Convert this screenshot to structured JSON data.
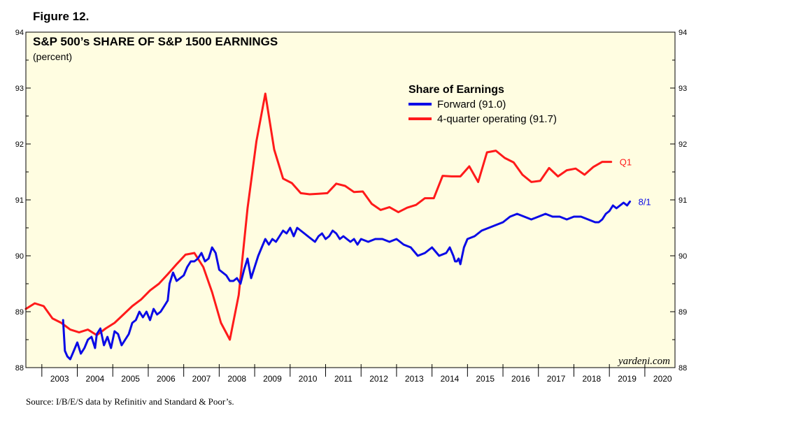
{
  "figure_label": "Figure 12.",
  "source": "Source: I/B/E/S data by Refinitiv and Standard & Poor’s.",
  "chart_data": {
    "type": "line",
    "title": "S&P 500’s SHARE OF S&P 1500 EARNINGS",
    "subtitle": "(percent)",
    "watermark": "yardeni.com",
    "ylim": [
      88,
      94
    ],
    "xlim": [
      2002.55,
      2020.85
    ],
    "yticks": [
      88,
      89,
      90,
      91,
      92,
      93,
      94
    ],
    "xtick_labels": [
      "2003",
      "2004",
      "2005",
      "2006",
      "2007",
      "2008",
      "2009",
      "2010",
      "2011",
      "2012",
      "2013",
      "2014",
      "2015",
      "2016",
      "2017",
      "2018",
      "2019",
      "2020"
    ],
    "background_color": "#fffde1",
    "legend": {
      "title": "Share of Earnings",
      "position": "top-right",
      "entries": [
        "Forward (91.0)",
        "4-quarter operating (91.7)"
      ]
    },
    "series": [
      {
        "key": "forward",
        "color": "#0a0ae6",
        "end_label": "8/1",
        "x": [
          2003.6,
          2003.65,
          2003.72,
          2003.8,
          2003.9,
          2004.0,
          2004.1,
          2004.2,
          2004.3,
          2004.4,
          2004.5,
          2004.55,
          2004.65,
          2004.75,
          2004.85,
          2004.95,
          2005.05,
          2005.15,
          2005.25,
          2005.35,
          2005.45,
          2005.55,
          2005.65,
          2005.75,
          2005.85,
          2005.95,
          2006.05,
          2006.15,
          2006.25,
          2006.35,
          2006.45,
          2006.55,
          2006.6,
          2006.7,
          2006.8,
          2006.9,
          2007.0,
          2007.1,
          2007.2,
          2007.3,
          2007.4,
          2007.5,
          2007.6,
          2007.7,
          2007.8,
          2007.9,
          2008.0,
          2008.1,
          2008.2,
          2008.3,
          2008.4,
          2008.5,
          2008.6,
          2008.7,
          2008.8,
          2008.9,
          2009.0,
          2009.1,
          2009.2,
          2009.3,
          2009.4,
          2009.5,
          2009.6,
          2009.7,
          2009.8,
          2009.9,
          2010.0,
          2010.1,
          2010.2,
          2010.3,
          2010.4,
          2010.5,
          2010.6,
          2010.7,
          2010.8,
          2010.9,
          2011.0,
          2011.1,
          2011.2,
          2011.3,
          2011.4,
          2011.5,
          2011.6,
          2011.7,
          2011.8,
          2011.9,
          2012.0,
          2012.2,
          2012.4,
          2012.6,
          2012.8,
          2013.0,
          2013.2,
          2013.4,
          2013.6,
          2013.8,
          2014.0,
          2014.2,
          2014.4,
          2014.5,
          2014.6,
          2014.65,
          2014.7,
          2014.75,
          2014.8,
          2014.9,
          2015.0,
          2015.2,
          2015.4,
          2015.6,
          2015.8,
          2016.0,
          2016.2,
          2016.4,
          2016.6,
          2016.8,
          2017.0,
          2017.2,
          2017.4,
          2017.6,
          2017.8,
          2018.0,
          2018.2,
          2018.4,
          2018.6,
          2018.7,
          2018.8,
          2018.9,
          2019.0,
          2019.1,
          2019.2,
          2019.3,
          2019.4,
          2019.5,
          2019.58
        ],
        "values": [
          88.85,
          88.3,
          88.2,
          88.15,
          88.3,
          88.45,
          88.25,
          88.35,
          88.5,
          88.55,
          88.35,
          88.6,
          88.7,
          88.4,
          88.55,
          88.35,
          88.65,
          88.6,
          88.4,
          88.5,
          88.6,
          88.8,
          88.85,
          89.0,
          88.9,
          89.0,
          88.85,
          89.05,
          88.95,
          89.0,
          89.1,
          89.2,
          89.5,
          89.7,
          89.55,
          89.6,
          89.65,
          89.8,
          89.9,
          89.9,
          89.95,
          90.05,
          89.9,
          89.95,
          90.15,
          90.05,
          89.75,
          89.7,
          89.65,
          89.55,
          89.55,
          89.6,
          89.5,
          89.75,
          89.95,
          89.6,
          89.8,
          90.0,
          90.15,
          90.3,
          90.2,
          90.3,
          90.25,
          90.35,
          90.45,
          90.4,
          90.5,
          90.35,
          90.5,
          90.45,
          90.4,
          90.35,
          90.3,
          90.25,
          90.35,
          90.4,
          90.3,
          90.35,
          90.45,
          90.4,
          90.3,
          90.35,
          90.3,
          90.25,
          90.3,
          90.2,
          90.3,
          90.25,
          90.3,
          90.3,
          90.25,
          90.3,
          90.2,
          90.15,
          90.0,
          90.05,
          90.15,
          90.0,
          90.05,
          90.15,
          90.0,
          89.9,
          89.9,
          89.95,
          89.85,
          90.15,
          90.3,
          90.35,
          90.45,
          90.5,
          90.55,
          90.6,
          90.7,
          90.75,
          90.7,
          90.65,
          90.7,
          90.75,
          90.7,
          90.7,
          90.65,
          90.7,
          90.7,
          90.65,
          90.6,
          90.6,
          90.65,
          90.75,
          90.8,
          90.9,
          90.85,
          90.9,
          90.95,
          90.9,
          90.97
        ]
      },
      {
        "key": "operating",
        "color": "#ff1a1a",
        "end_label": "Q1",
        "x": [
          2002.55,
          2002.8,
          2003.05,
          2003.3,
          2003.55,
          2003.8,
          2004.05,
          2004.3,
          2004.55,
          2004.8,
          2005.05,
          2005.3,
          2005.55,
          2005.8,
          2006.05,
          2006.3,
          2006.55,
          2006.8,
          2007.05,
          2007.3,
          2007.55,
          2007.8,
          2008.05,
          2008.3,
          2008.55,
          2008.8,
          2009.05,
          2009.3,
          2009.55,
          2009.8,
          2010.05,
          2010.3,
          2010.55,
          2010.8,
          2011.05,
          2011.3,
          2011.55,
          2011.8,
          2012.05,
          2012.3,
          2012.55,
          2012.8,
          2013.05,
          2013.3,
          2013.55,
          2013.8,
          2014.05,
          2014.3,
          2014.55,
          2014.8,
          2015.05,
          2015.3,
          2015.55,
          2015.8,
          2016.05,
          2016.3,
          2016.55,
          2016.8,
          2017.05,
          2017.3,
          2017.55,
          2017.8,
          2018.05,
          2018.3,
          2018.55,
          2018.8,
          2019.05
        ],
        "values": [
          89.05,
          89.15,
          89.1,
          88.88,
          88.8,
          88.68,
          88.63,
          88.68,
          88.58,
          88.7,
          88.8,
          88.95,
          89.1,
          89.22,
          89.38,
          89.5,
          89.67,
          89.85,
          90.02,
          90.05,
          89.8,
          89.35,
          88.8,
          88.5,
          89.3,
          90.85,
          92.05,
          92.9,
          91.9,
          91.38,
          91.3,
          91.12,
          91.1,
          91.11,
          91.12,
          91.29,
          91.25,
          91.14,
          91.15,
          90.93,
          90.82,
          90.87,
          90.78,
          90.86,
          90.91,
          91.03,
          91.03,
          91.43,
          91.42,
          91.42,
          91.6,
          91.32,
          91.85,
          91.88,
          91.75,
          91.67,
          91.45,
          91.32,
          91.34,
          91.57,
          91.42,
          91.53,
          91.56,
          91.45,
          91.59,
          91.68,
          91.68
        ]
      }
    ]
  }
}
